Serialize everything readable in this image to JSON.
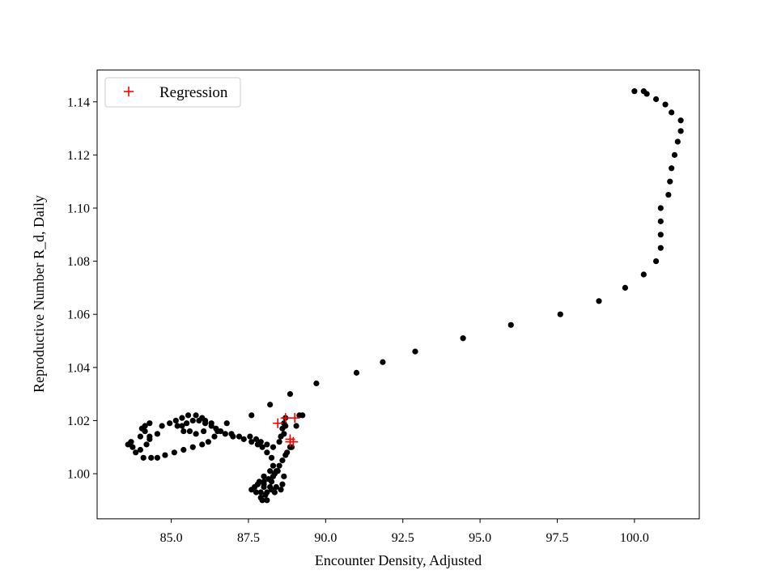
{
  "chart_data": {
    "type": "scatter",
    "title": "",
    "xlabel": "Encounter Density, Adjusted",
    "ylabel": "Reproductive Number R_d, Daily",
    "xlim": [
      82.6,
      102.1
    ],
    "ylim": [
      0.983,
      1.152
    ],
    "xticks": [
      85.0,
      87.5,
      90.0,
      92.5,
      95.0,
      97.5,
      100.0
    ],
    "xtick_labels": [
      "85.0",
      "87.5",
      "90.0",
      "92.5",
      "95.0",
      "97.5",
      "100.0"
    ],
    "yticks": [
      1.0,
      1.02,
      1.04,
      1.06,
      1.08,
      1.1,
      1.12,
      1.14
    ],
    "ytick_labels": [
      "1.00",
      "1.02",
      "1.04",
      "1.06",
      "1.08",
      "1.10",
      "1.12",
      "1.14"
    ],
    "grid": false,
    "legend": {
      "placement": "top-left",
      "entries": [
        "Regression"
      ]
    },
    "series": [
      {
        "color": "#000000",
        "marker": "circle",
        "points": [
          [
            100.0,
            1.144
          ],
          [
            100.3,
            1.144
          ],
          [
            100.4,
            1.143
          ],
          [
            100.7,
            1.141
          ],
          [
            101.0,
            1.139
          ],
          [
            101.2,
            1.136
          ],
          [
            101.5,
            1.133
          ],
          [
            101.5,
            1.129
          ],
          [
            101.4,
            1.125
          ],
          [
            101.3,
            1.12
          ],
          [
            101.2,
            1.115
          ],
          [
            101.15,
            1.11
          ],
          [
            101.1,
            1.105
          ],
          [
            100.85,
            1.1
          ],
          [
            100.85,
            1.095
          ],
          [
            100.85,
            1.09
          ],
          [
            100.85,
            1.085
          ],
          [
            100.7,
            1.08
          ],
          [
            100.3,
            1.075
          ],
          [
            99.7,
            1.07
          ],
          [
            98.85,
            1.065
          ],
          [
            97.6,
            1.06
          ],
          [
            96.0,
            1.056
          ],
          [
            94.45,
            1.051
          ],
          [
            92.9,
            1.046
          ],
          [
            91.85,
            1.042
          ],
          [
            91.0,
            1.038
          ],
          [
            89.7,
            1.034
          ],
          [
            88.85,
            1.03
          ],
          [
            88.2,
            1.026
          ],
          [
            89.25,
            1.022
          ],
          [
            89.15,
            1.022
          ],
          [
            89.05,
            1.018
          ],
          [
            88.85,
            1.01
          ],
          [
            88.7,
            1.007
          ],
          [
            88.6,
            1.005
          ],
          [
            88.5,
            1.003
          ],
          [
            88.4,
            1.001
          ],
          [
            88.3,
            0.999
          ],
          [
            88.25,
            0.997
          ],
          [
            88.2,
            0.995
          ],
          [
            88.1,
            0.993
          ],
          [
            87.9,
            0.991
          ],
          [
            87.75,
            0.993
          ],
          [
            87.6,
            0.994
          ],
          [
            87.8,
            0.996
          ],
          [
            88.0,
            0.997
          ],
          [
            88.15,
            0.998
          ],
          [
            88.0,
            0.999
          ],
          [
            87.85,
            0.997
          ],
          [
            87.7,
            0.995
          ],
          [
            87.9,
            0.993
          ],
          [
            88.05,
            0.992
          ],
          [
            88.25,
            0.994
          ],
          [
            88.4,
            0.995
          ],
          [
            88.6,
            0.996
          ],
          [
            88.65,
            0.999
          ],
          [
            88.35,
            1.0
          ],
          [
            88.2,
            1.001
          ],
          [
            88.3,
            1.003
          ],
          [
            88.25,
            1.006
          ],
          [
            88.1,
            1.008
          ],
          [
            87.95,
            1.01
          ],
          [
            87.8,
            1.011
          ],
          [
            87.6,
            1.012
          ],
          [
            87.35,
            1.013
          ],
          [
            87.2,
            1.014
          ],
          [
            86.95,
            1.015
          ],
          [
            86.75,
            1.015
          ],
          [
            86.6,
            1.016
          ],
          [
            86.45,
            1.017
          ],
          [
            86.3,
            1.019
          ],
          [
            86.1,
            1.02
          ],
          [
            86.0,
            1.021
          ],
          [
            85.8,
            1.022
          ],
          [
            85.55,
            1.022
          ],
          [
            85.35,
            1.021
          ],
          [
            85.15,
            1.02
          ],
          [
            84.95,
            1.019
          ],
          [
            84.7,
            1.018
          ],
          [
            84.55,
            1.015
          ],
          [
            84.3,
            1.013
          ],
          [
            84.2,
            1.011
          ],
          [
            84.0,
            1.009
          ],
          [
            83.85,
            1.008
          ],
          [
            83.75,
            1.01
          ],
          [
            83.6,
            1.011
          ],
          [
            83.7,
            1.012
          ],
          [
            84.0,
            1.014
          ],
          [
            84.15,
            1.016
          ],
          [
            84.3,
            1.019
          ],
          [
            84.15,
            1.018
          ],
          [
            84.05,
            1.017
          ],
          [
            84.3,
            1.014
          ],
          [
            84.1,
            1.006
          ],
          [
            84.35,
            1.006
          ],
          [
            84.55,
            1.006
          ],
          [
            84.8,
            1.007
          ],
          [
            85.1,
            1.008
          ],
          [
            85.4,
            1.009
          ],
          [
            85.7,
            1.01
          ],
          [
            86.0,
            1.011
          ],
          [
            86.2,
            1.012
          ],
          [
            86.4,
            1.014
          ],
          [
            86.5,
            1.016
          ],
          [
            86.3,
            1.018
          ],
          [
            86.1,
            1.019
          ],
          [
            85.9,
            1.02
          ],
          [
            85.7,
            1.02
          ],
          [
            85.5,
            1.019
          ],
          [
            85.35,
            1.018
          ],
          [
            85.2,
            1.018
          ],
          [
            85.4,
            1.016
          ],
          [
            85.6,
            1.016
          ],
          [
            85.8,
            1.015
          ],
          [
            86.05,
            1.016
          ],
          [
            86.8,
            1.019
          ],
          [
            87.6,
            1.022
          ],
          [
            87.0,
            1.014
          ],
          [
            87.55,
            1.014
          ],
          [
            87.75,
            1.013
          ],
          [
            87.9,
            1.012
          ],
          [
            88.1,
            1.011
          ],
          [
            88.3,
            1.01
          ],
          [
            88.5,
            1.012
          ],
          [
            88.65,
            1.015
          ],
          [
            88.7,
            1.018
          ],
          [
            88.7,
            1.021
          ],
          [
            88.65,
            1.019
          ],
          [
            88.6,
            1.017
          ],
          [
            88.55,
            1.014
          ],
          [
            88.9,
            1.01
          ],
          [
            88.75,
            1.008
          ],
          [
            88.45,
            1.001
          ],
          [
            88.0,
            0.996
          ],
          [
            88.1,
            0.99
          ],
          [
            87.95,
            0.99
          ],
          [
            88.0,
            0.995
          ],
          [
            88.55,
            0.994
          ],
          [
            88.35,
            0.993
          ]
        ]
      },
      {
        "name": "Regression",
        "color": "#ff0000",
        "marker": "plus",
        "points": [
          [
            88.45,
            1.019
          ],
          [
            88.7,
            1.021
          ],
          [
            89.0,
            1.021
          ],
          [
            88.85,
            1.013
          ],
          [
            88.95,
            1.012
          ],
          [
            88.85,
            1.012
          ]
        ]
      }
    ]
  }
}
